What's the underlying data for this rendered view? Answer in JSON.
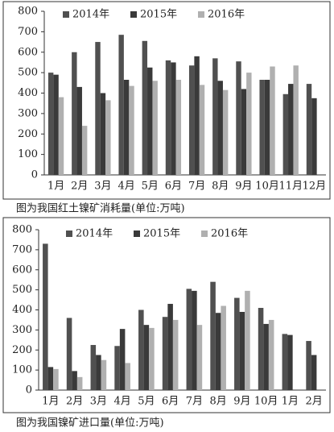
{
  "chart_data": [
    {
      "type": "bar",
      "title": "图为我国红土镍矿消耗量(单位:万吨)",
      "categories": [
        "1月",
        "2月",
        "3月",
        "4月",
        "5月",
        "6月",
        "7月",
        "8月",
        "9月",
        "10月",
        "11月",
        "12月"
      ],
      "series": [
        {
          "name": "2014年",
          "color": "#505050",
          "values": [
            500,
            600,
            650,
            685,
            655,
            560,
            535,
            570,
            555,
            465,
            395,
            445
          ]
        },
        {
          "name": "2015年",
          "color": "#3a3a3a",
          "values": [
            490,
            430,
            400,
            465,
            525,
            550,
            580,
            460,
            420,
            465,
            445,
            375
          ]
        },
        {
          "name": "2016年",
          "color": "#b0b0b0",
          "values": [
            380,
            240,
            365,
            435,
            460,
            465,
            440,
            415,
            500,
            530,
            535,
            null
          ]
        }
      ],
      "ylim": [
        0,
        800
      ],
      "yticks": [
        0,
        100,
        200,
        300,
        400,
        500,
        600,
        700,
        800
      ]
    },
    {
      "type": "bar",
      "title": "图为我国镍矿进口量(单位:万吨)",
      "categories": [
        "1月",
        "2月",
        "3月",
        "4月",
        "5月",
        "6月",
        "7月",
        "8月",
        "9月",
        "10月",
        "1月",
        "2月"
      ],
      "series": [
        {
          "name": "2014年",
          "color": "#505050",
          "values": [
            730,
            360,
            225,
            220,
            400,
            365,
            505,
            540,
            460,
            410,
            280,
            245
          ]
        },
        {
          "name": "2015年",
          "color": "#3a3a3a",
          "values": [
            115,
            95,
            175,
            305,
            325,
            430,
            495,
            385,
            390,
            330,
            275,
            175
          ]
        },
        {
          "name": "2016年",
          "color": "#b0b0b0",
          "values": [
            105,
            65,
            150,
            135,
            310,
            350,
            325,
            420,
            495,
            350,
            null,
            null
          ]
        }
      ],
      "ylim": [
        0,
        800
      ],
      "yticks": [
        0,
        100,
        200,
        300,
        400,
        500,
        600,
        700,
        800
      ]
    }
  ]
}
